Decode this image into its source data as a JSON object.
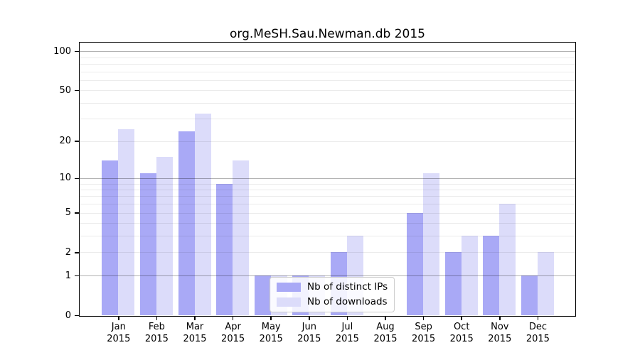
{
  "title": "org.MeSH.Sau.Newman.db 2015",
  "chart_data": {
    "type": "bar",
    "title": "org.MeSH.Sau.Newman.db 2015",
    "categories": [
      "Jan",
      "Feb",
      "Mar",
      "Apr",
      "May",
      "Jun",
      "Jul",
      "Aug",
      "Sep",
      "Oct",
      "Nov",
      "Dec"
    ],
    "year_label": "2015",
    "series": [
      {
        "name": "Nb of distinct IPs",
        "color": "#a9a9f6",
        "values": [
          14,
          11,
          24,
          9,
          1,
          1,
          2,
          0,
          5,
          2,
          3,
          1
        ]
      },
      {
        "name": "Nb of downloads",
        "color": "#dcdcfa",
        "values": [
          25,
          15,
          33,
          14,
          1,
          1,
          3,
          0,
          11,
          3,
          6,
          2
        ]
      }
    ],
    "xlabel": "",
    "ylabel": "",
    "yscale": "log10(1+x)",
    "ylim": [
      0,
      112
    ],
    "ytick_values": [
      0,
      1,
      2,
      5,
      10,
      20,
      50,
      100
    ],
    "major_gridlines": [
      1,
      10,
      100
    ],
    "minor_gridlines": [
      2,
      3,
      4,
      5,
      6,
      7,
      8,
      9,
      20,
      30,
      40,
      50,
      60,
      70,
      80,
      90
    ],
    "grid": "on",
    "legend_position": "lower center",
    "colors": {
      "major_grid": "rgba(0,0,0,0.30)",
      "minor_grid": "rgba(0,0,0,0.08)",
      "spine": "#000000",
      "text": "#000000"
    }
  },
  "legend": {
    "items": [
      {
        "label": "Nb of distinct IPs",
        "color": "#a9a9f6"
      },
      {
        "label": "Nb of downloads",
        "color": "#dcdcfa"
      }
    ]
  }
}
